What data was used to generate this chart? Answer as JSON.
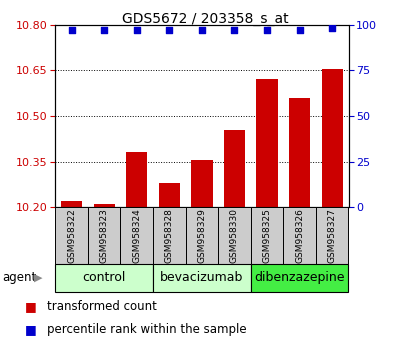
{
  "title": "GDS5672 / 203358_s_at",
  "samples": [
    "GSM958322",
    "GSM958323",
    "GSM958324",
    "GSM958328",
    "GSM958329",
    "GSM958330",
    "GSM958325",
    "GSM958326",
    "GSM958327"
  ],
  "transformed_count": [
    10.22,
    10.21,
    10.38,
    10.28,
    10.355,
    10.455,
    10.62,
    10.56,
    10.655
  ],
  "percentile_rank": [
    97,
    97,
    97,
    97,
    97,
    97,
    97,
    97,
    98
  ],
  "ylim_left": [
    10.2,
    10.8
  ],
  "ylim_right": [
    0,
    100
  ],
  "yticks_left": [
    10.2,
    10.35,
    10.5,
    10.65,
    10.8
  ],
  "yticks_right": [
    0,
    25,
    50,
    75,
    100
  ],
  "bar_color": "#cc0000",
  "dot_color": "#0000cc",
  "groups": [
    {
      "label": "control",
      "indices": [
        0,
        1,
        2
      ],
      "color": "#ccffcc"
    },
    {
      "label": "bevacizumab",
      "indices": [
        3,
        4,
        5
      ],
      "color": "#ccffcc"
    },
    {
      "label": "dibenzazepine",
      "indices": [
        6,
        7,
        8
      ],
      "color": "#44ee44"
    }
  ],
  "agent_label": "agent",
  "legend_bar_label": "transformed count",
  "legend_dot_label": "percentile rank within the sample",
  "background_color": "#ffffff",
  "tick_label_color_left": "#cc0000",
  "tick_label_color_right": "#0000cc",
  "grid_color": "#888888",
  "sample_bg_color": "#cccccc",
  "title_fontsize": 10,
  "tick_fontsize": 8,
  "label_fontsize": 8.5,
  "sample_fontsize": 6.5,
  "group_fontsize": 9
}
